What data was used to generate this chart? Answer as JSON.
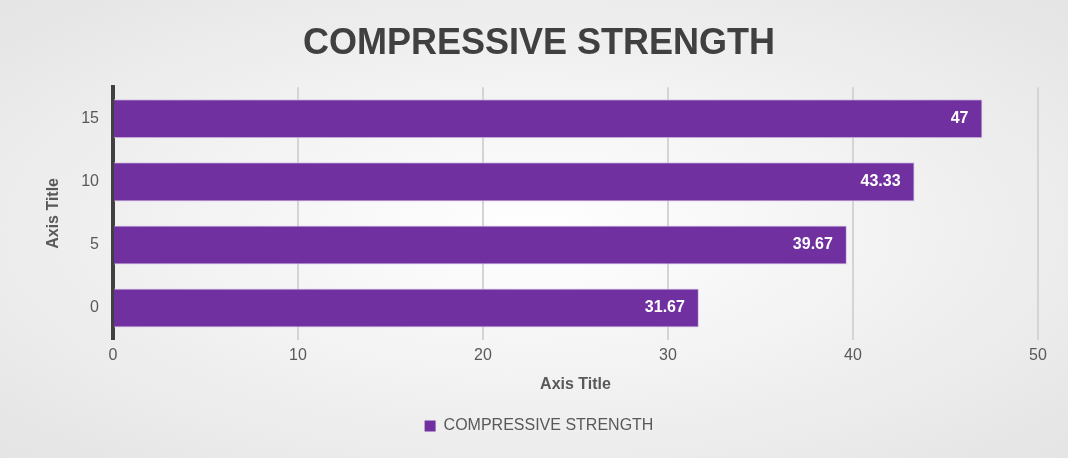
{
  "chart_data": {
    "type": "bar",
    "orientation": "horizontal",
    "title": "COMPRESSIVE STRENGTH",
    "xlabel": "Axis Title",
    "ylabel": "Axis Title",
    "categories": [
      "15",
      "10",
      "5",
      "0"
    ],
    "series": [
      {
        "name": "COMPRESSIVE STRENGTH",
        "color": "#7030a0",
        "values": [
          47,
          43.33,
          39.67,
          31.67
        ]
      }
    ],
    "xlim": [
      0,
      50
    ],
    "xticks": [
      0,
      10,
      20,
      30,
      40,
      50
    ],
    "grid": "x",
    "legend": "bottom",
    "data_labels": true
  }
}
